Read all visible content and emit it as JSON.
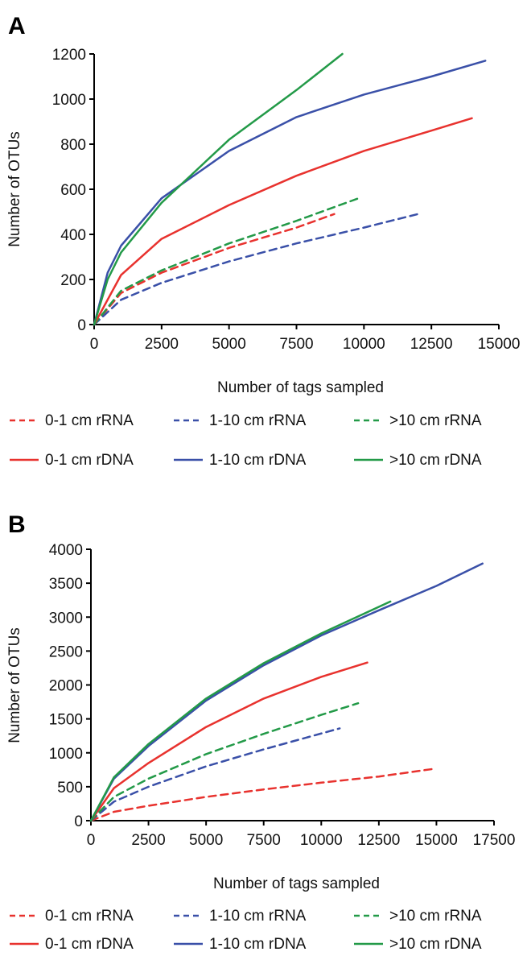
{
  "chart_data": [
    {
      "type": "line",
      "panel_label": "A",
      "xlabel": "Number of tags sampled",
      "ylabel": "Number of OTUs",
      "xlim": [
        0,
        15000
      ],
      "ylim": [
        0,
        1200
      ],
      "x_ticks": [
        0,
        2500,
        5000,
        7500,
        10000,
        12500,
        15000
      ],
      "y_ticks": [
        0,
        200,
        400,
        600,
        800,
        1000,
        1200
      ],
      "grid": false,
      "legend_position": "bottom",
      "series": [
        {
          "name": "0-1 cm rRNA",
          "color": "#e8322e",
          "dash": "dashed",
          "x": [
            0,
            1000,
            2500,
            5000,
            7500,
            8900
          ],
          "y": [
            0,
            140,
            230,
            340,
            430,
            490
          ]
        },
        {
          "name": "1-10 cm rRNA",
          "color": "#3a50a8",
          "dash": "dashed",
          "x": [
            0,
            1000,
            2500,
            5000,
            7500,
            10000,
            12000
          ],
          "y": [
            0,
            110,
            185,
            280,
            360,
            430,
            490
          ]
        },
        {
          "name": ">10 cm rRNA",
          "color": "#239a48",
          "dash": "dashed",
          "x": [
            0,
            1000,
            2500,
            5000,
            7500,
            9800
          ],
          "y": [
            0,
            150,
            240,
            360,
            460,
            560
          ]
        },
        {
          "name": "0-1 cm rDNA",
          "color": "#e8322e",
          "dash": "solid",
          "x": [
            0,
            1000,
            2500,
            5000,
            7500,
            10000,
            12500,
            14000
          ],
          "y": [
            0,
            220,
            380,
            530,
            660,
            770,
            860,
            915
          ]
        },
        {
          "name": "1-10 cm rDNA",
          "color": "#3a50a8",
          "dash": "solid",
          "x": [
            0,
            500,
            1000,
            2500,
            5000,
            7500,
            10000,
            12500,
            14500
          ],
          "y": [
            0,
            230,
            350,
            560,
            770,
            920,
            1020,
            1100,
            1170
          ]
        },
        {
          "name": ">10 cm rDNA",
          "color": "#239a48",
          "dash": "solid",
          "x": [
            0,
            500,
            1000,
            2500,
            5000,
            7500,
            9200
          ],
          "y": [
            0,
            200,
            320,
            540,
            820,
            1040,
            1200
          ]
        }
      ]
    },
    {
      "type": "line",
      "panel_label": "B",
      "xlabel": "Number of tags sampled",
      "ylabel": "Number of OTUs",
      "xlim": [
        0,
        17500
      ],
      "ylim": [
        0,
        4000
      ],
      "x_ticks": [
        0,
        2500,
        5000,
        7500,
        10000,
        12500,
        15000,
        17500
      ],
      "y_ticks": [
        0,
        500,
        1000,
        1500,
        2000,
        2500,
        3000,
        3500,
        4000
      ],
      "grid": false,
      "legend_position": "bottom",
      "series": [
        {
          "name": "0-1 cm rRNA",
          "color": "#e8322e",
          "dash": "dashed",
          "x": [
            0,
            1000,
            2500,
            5000,
            7500,
            10000,
            12500,
            14800
          ],
          "y": [
            0,
            130,
            220,
            350,
            460,
            560,
            650,
            760
          ]
        },
        {
          "name": "1-10 cm rRNA",
          "color": "#3a50a8",
          "dash": "dashed",
          "x": [
            0,
            1000,
            2500,
            5000,
            7500,
            10800
          ],
          "y": [
            0,
            280,
            500,
            800,
            1050,
            1360
          ]
        },
        {
          "name": ">10 cm rRNA",
          "color": "#239a48",
          "dash": "dashed",
          "x": [
            0,
            1000,
            2500,
            5000,
            7500,
            10000,
            11600
          ],
          "y": [
            0,
            350,
            620,
            980,
            1280,
            1560,
            1730
          ]
        },
        {
          "name": "0-1 cm rDNA",
          "color": "#e8322e",
          "dash": "solid",
          "x": [
            0,
            1000,
            2500,
            5000,
            7500,
            10000,
            12000
          ],
          "y": [
            0,
            480,
            850,
            1380,
            1800,
            2120,
            2330
          ]
        },
        {
          "name": "1-10 cm rDNA",
          "color": "#3a50a8",
          "dash": "solid",
          "x": [
            0,
            1000,
            2500,
            5000,
            7500,
            10000,
            12500,
            15000,
            17000
          ],
          "y": [
            0,
            620,
            1100,
            1770,
            2290,
            2730,
            3100,
            3460,
            3790
          ]
        },
        {
          "name": ">10 cm rDNA",
          "color": "#239a48",
          "dash": "solid",
          "x": [
            0,
            1000,
            2500,
            5000,
            7500,
            10000,
            13000
          ],
          "y": [
            0,
            640,
            1130,
            1800,
            2320,
            2760,
            3230
          ]
        }
      ]
    }
  ]
}
